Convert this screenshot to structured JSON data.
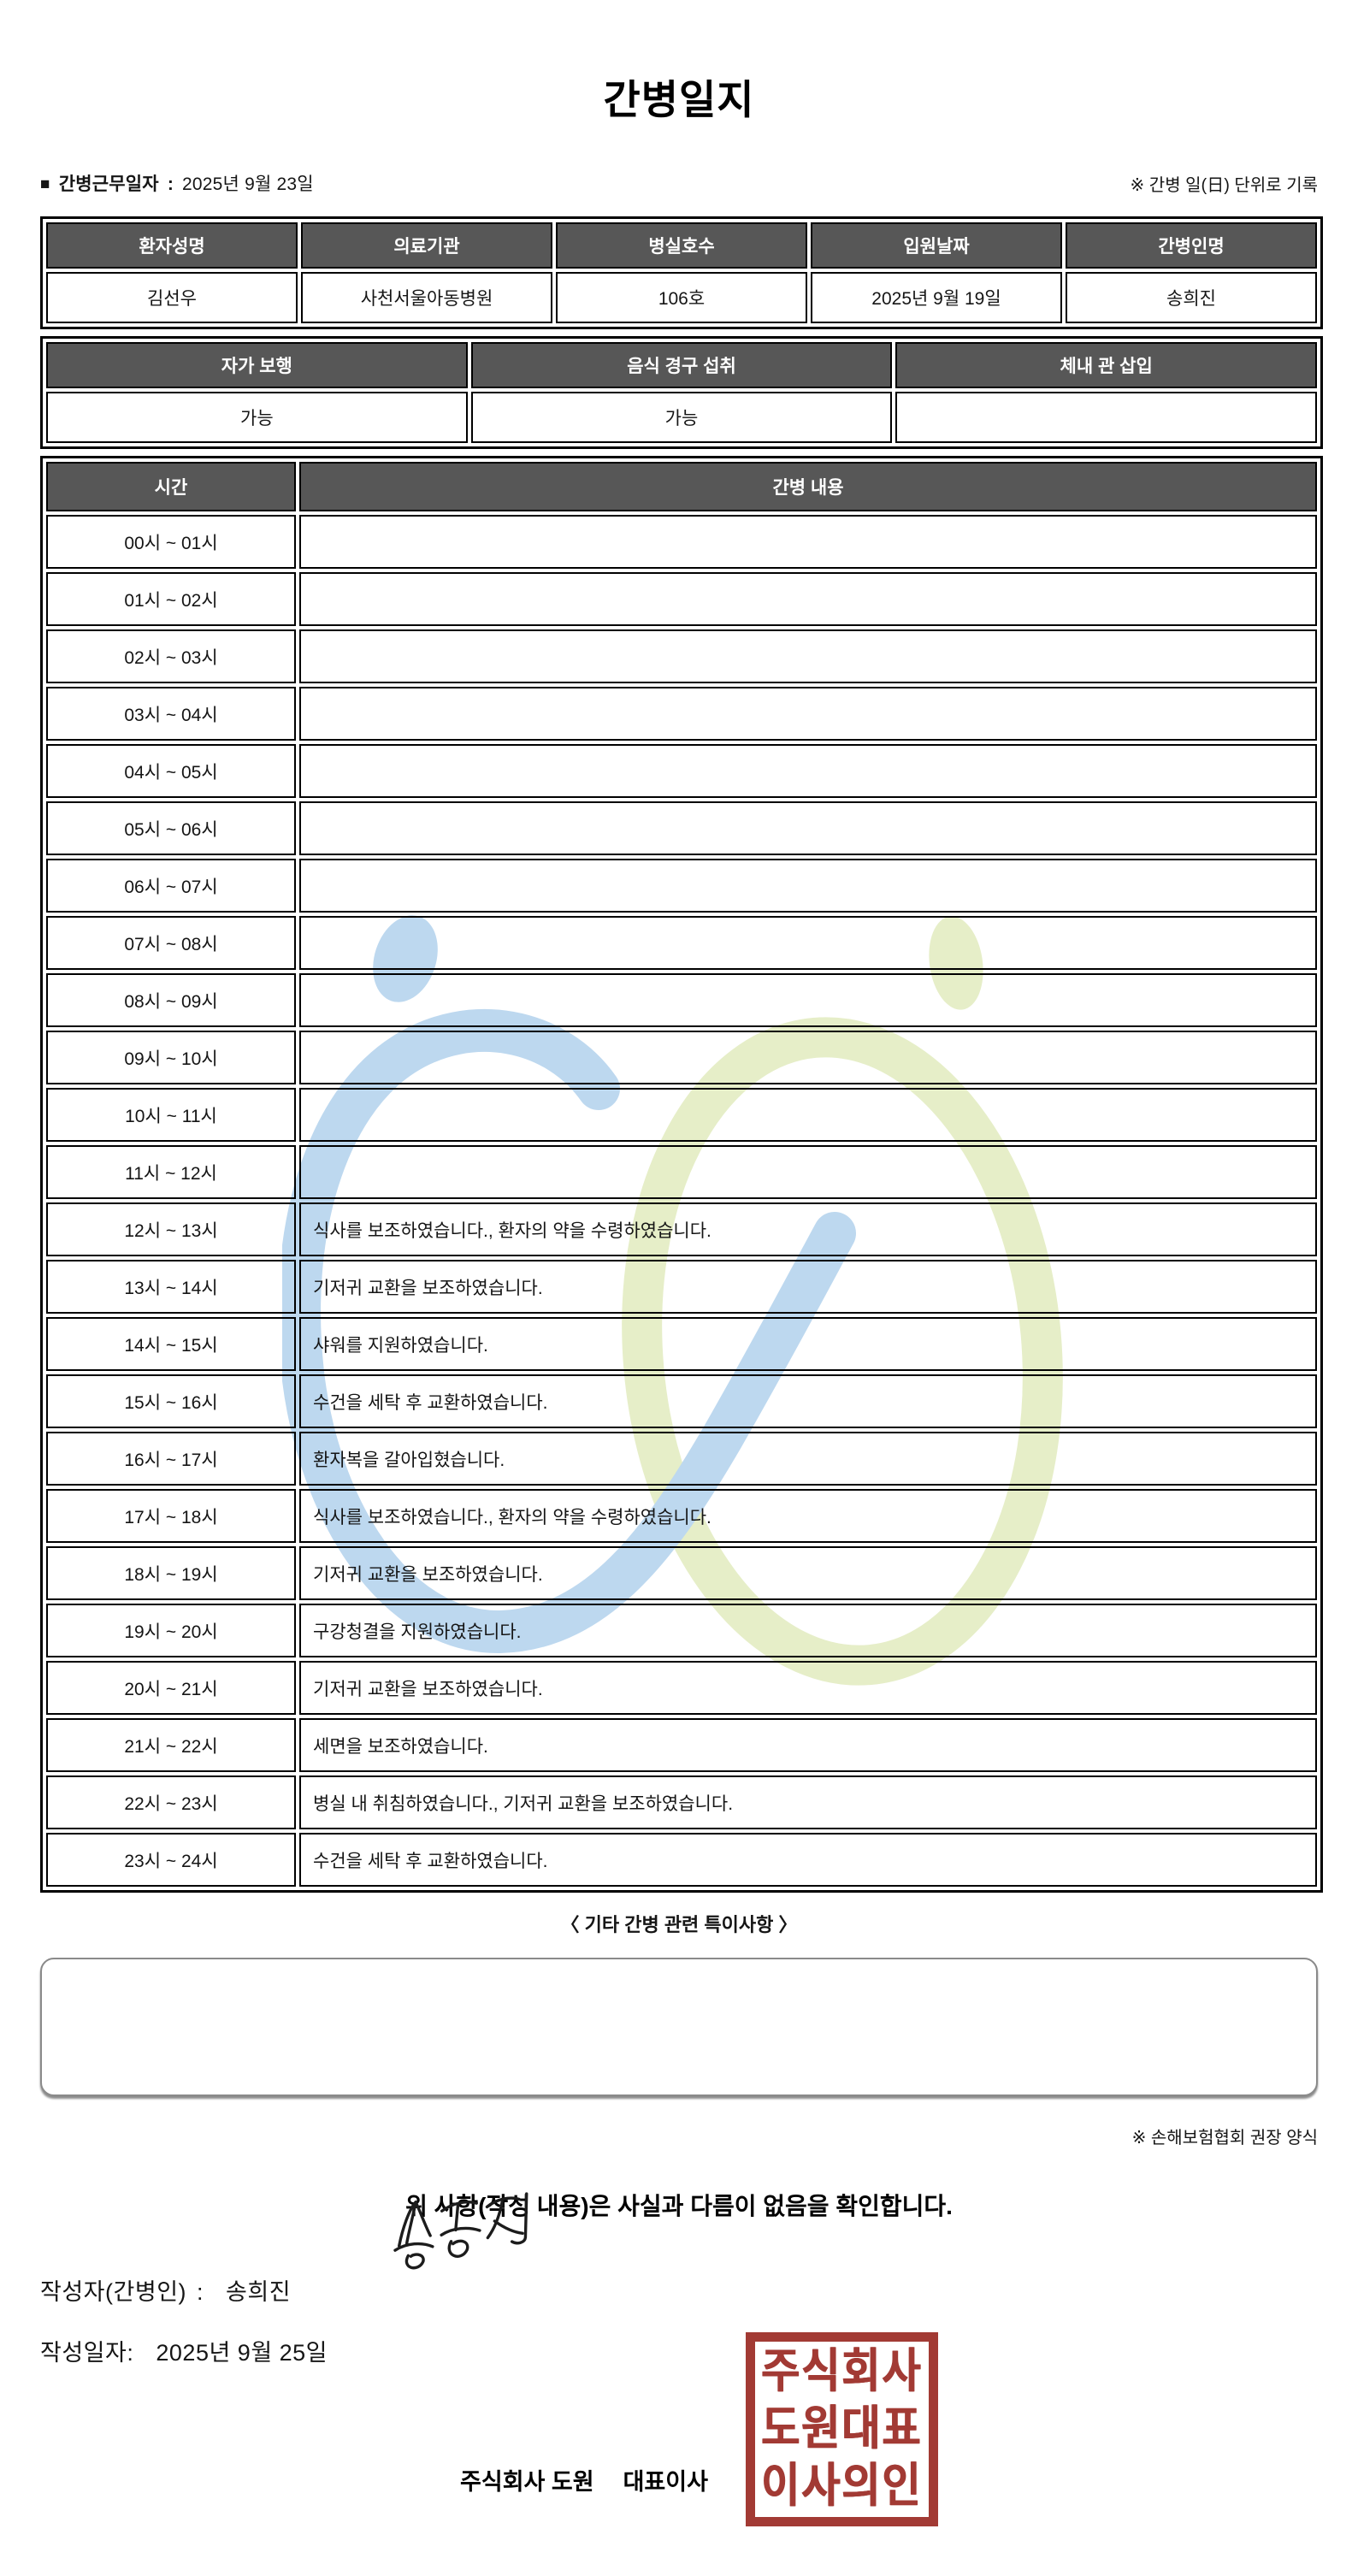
{
  "title": "간병일지",
  "meta": {
    "bullet": "■",
    "work_date_label": "간병근무일자",
    "colon": ":",
    "work_date_value": "2025년 9월 23일",
    "unit_note": "※ 간병 일(日) 단위로 기록"
  },
  "info_table": {
    "headers": [
      "환자성명",
      "의료기관",
      "병실호수",
      "입원날짜",
      "간병인명"
    ],
    "values": [
      "김선우",
      "사천서울아동병원",
      "106호",
      "2025년 9월 19일",
      "송희진"
    ]
  },
  "status_table": {
    "headers": [
      "자가 보행",
      "음식 경구 섭취",
      "체내 관 삽입"
    ],
    "values": [
      "가능",
      "가능",
      ""
    ]
  },
  "hourly_table": {
    "time_header": "시간",
    "content_header": "간병 내용",
    "rows": [
      {
        "time": "00시 ~ 01시",
        "content": ""
      },
      {
        "time": "01시 ~ 02시",
        "content": ""
      },
      {
        "time": "02시 ~ 03시",
        "content": ""
      },
      {
        "time": "03시 ~ 04시",
        "content": ""
      },
      {
        "time": "04시 ~ 05시",
        "content": ""
      },
      {
        "time": "05시 ~ 06시",
        "content": ""
      },
      {
        "time": "06시 ~ 07시",
        "content": ""
      },
      {
        "time": "07시 ~ 08시",
        "content": ""
      },
      {
        "time": "08시 ~ 09시",
        "content": ""
      },
      {
        "time": "09시 ~ 10시",
        "content": ""
      },
      {
        "time": "10시 ~ 11시",
        "content": ""
      },
      {
        "time": "11시 ~ 12시",
        "content": ""
      },
      {
        "time": "12시 ~ 13시",
        "content": "식사를 보조하였습니다., 환자의 약을 수령하였습니다."
      },
      {
        "time": "13시 ~ 14시",
        "content": "기저귀 교환을 보조하였습니다."
      },
      {
        "time": "14시 ~ 15시",
        "content": "샤워를 지원하였습니다."
      },
      {
        "time": "15시 ~ 16시",
        "content": "수건을 세탁 후 교환하였습니다."
      },
      {
        "time": "16시 ~ 17시",
        "content": "환자복을 갈아입혔습니다."
      },
      {
        "time": "17시 ~ 18시",
        "content": "식사를 보조하였습니다., 환자의 약을 수령하였습니다."
      },
      {
        "time": "18시 ~ 19시",
        "content": "기저귀 교환을 보조하였습니다."
      },
      {
        "time": "19시 ~ 20시",
        "content": "구강청결을 지원하였습니다."
      },
      {
        "time": "20시 ~ 21시",
        "content": "기저귀 교환을 보조하였습니다."
      },
      {
        "time": "21시 ~ 22시",
        "content": "세면을 보조하였습니다."
      },
      {
        "time": "22시 ~ 23시",
        "content": "병실 내 취침하였습니다., 기저귀 교환을 보조하였습니다."
      },
      {
        "time": "23시 ~ 24시",
        "content": "수건을 세탁 후 교환하였습니다."
      }
    ]
  },
  "notes_section": {
    "heading": "〈 기타 간병 관련 특이사항 〉",
    "box_content": "",
    "form_note": "※ 손해보험협회 권장 양식"
  },
  "confirmation": {
    "statement": "위 사항(작성 내용)은 사실과 다름이 없음을 확인합니다.",
    "writer_label": "작성자(간병인)",
    "writer_colon": ":",
    "writer_name": "송희진",
    "date_label": "작성일자",
    "date_colon": ":",
    "date_value": "2025년 9월 25일",
    "company": "주식회사 도원",
    "role": "대표이사"
  },
  "stamp": {
    "lines": [
      "주식회사",
      "도원대표",
      "이사의인"
    ],
    "color": "#a23a34"
  },
  "signature": {
    "name": "송희진",
    "ink_color": "#1c1c1c"
  },
  "colors": {
    "header_bg": "#575757",
    "header_text": "#ffffff",
    "border": "#000000",
    "text": "#151515",
    "watermark_blue": "#bdd8ef",
    "watermark_green": "#e6eec8"
  }
}
